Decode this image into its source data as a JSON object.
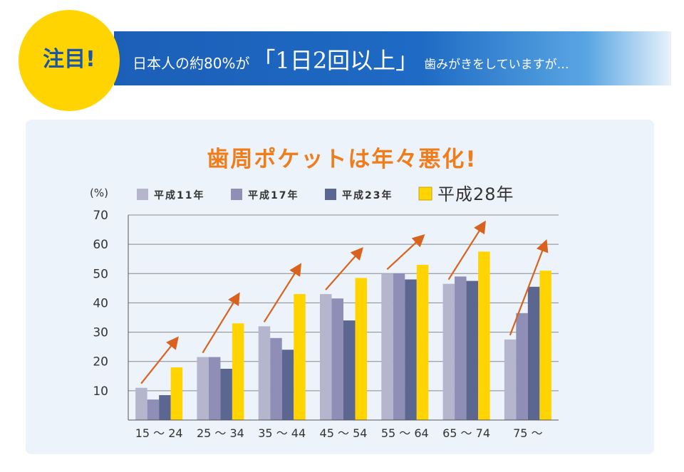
{
  "header": {
    "badge": "注目!",
    "headline_prefix": "日本人の約80%が",
    "headline_emphasis": "「1日2回以上」",
    "headline_suffix": "歯みがきをしていますが…"
  },
  "colors": {
    "banner": "#1c5fb8",
    "badge": "#ffd400",
    "title": "#ef7d1c",
    "panel": "#edf3fb",
    "arrow": "#d9631e"
  },
  "chart_data": {
    "type": "bar",
    "title": "歯周ポケットは年々悪化!",
    "ylabel": "(%)",
    "xlabel": "",
    "ylim": [
      0,
      70
    ],
    "yticks": [
      10,
      20,
      30,
      40,
      50,
      60,
      70
    ],
    "grid": true,
    "legend_position": "top",
    "categories": [
      "15 〜 24",
      "25 〜 34",
      "35 〜 44",
      "45 〜 54",
      "55 〜 64",
      "65 〜 74",
      "75 〜"
    ],
    "series": [
      {
        "name": "平成11年",
        "color": "#b5b5ce",
        "values": [
          11,
          21.5,
          32,
          43,
          50,
          46.5,
          27.5
        ]
      },
      {
        "name": "平成17年",
        "color": "#8e8eb7",
        "values": [
          7,
          21.5,
          28,
          41.5,
          50,
          49,
          36.5
        ]
      },
      {
        "name": "平成23年",
        "color": "#5b6791",
        "values": [
          8.5,
          17.5,
          24,
          34,
          48,
          47.5,
          45.5
        ]
      },
      {
        "name": "平成28年",
        "color": "#ffd400",
        "values": [
          18,
          33,
          43,
          48.5,
          53,
          57.5,
          51
        ]
      }
    ]
  }
}
